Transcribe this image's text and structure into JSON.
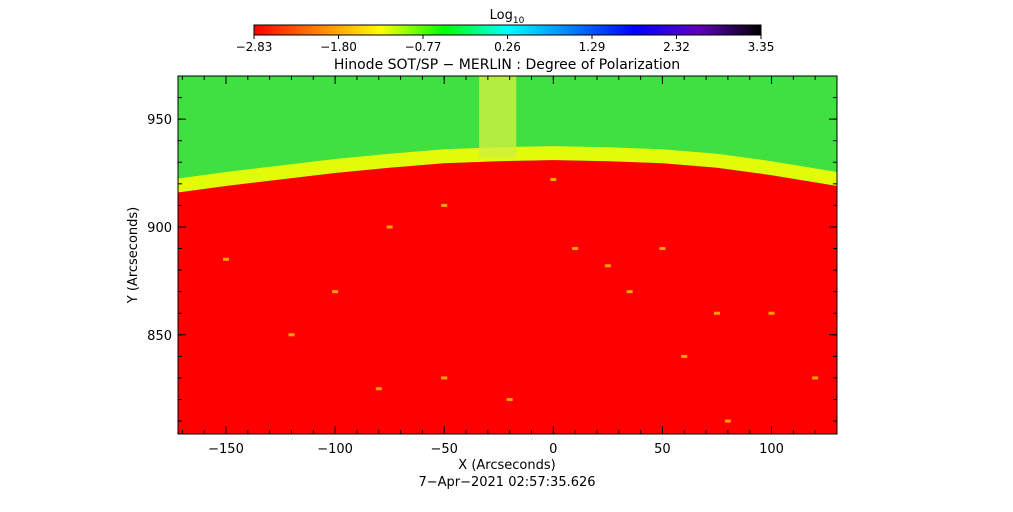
{
  "chart_data": {
    "type": "heatmap",
    "title": "Hinode SOT/SP − MERLIN : Degree of Polarization",
    "xlabel": "X (Arcseconds)",
    "ylabel": "Y (Arcseconds)",
    "timestamp": "7−Apr−2021 02:57:35.626",
    "xlim": [
      -172,
      130
    ],
    "ylim": [
      804,
      970
    ],
    "x_ticks": [
      -150,
      -100,
      -50,
      0,
      50,
      100
    ],
    "x_tick_labels": [
      "−150",
      "−100",
      "−50",
      "0",
      "50",
      "100"
    ],
    "y_ticks": [
      850,
      900,
      950
    ],
    "y_tick_labels": [
      "850",
      "900",
      "950"
    ],
    "colorbar": {
      "label": "Log",
      "label_subscript": "10",
      "range": [
        -2.83,
        3.35
      ],
      "ticks": [
        -2.83,
        -1.8,
        -0.77,
        0.26,
        1.29,
        2.32,
        3.35
      ],
      "tick_labels": [
        "−2.83",
        "−1.80",
        "−0.77",
        "0.26",
        "1.29",
        "2.32",
        "3.35"
      ],
      "colormap": [
        "#ff0000",
        "#ff8000",
        "#ffff00",
        "#00ff00",
        "#00ffff",
        "#0080ff",
        "#0000ff",
        "#6000c0",
        "#000000"
      ]
    },
    "colors": {
      "disk": "#ff0000",
      "limb_band": "#ffff00",
      "above_limb_low": "#c8f000",
      "above_limb_high": "#40e040",
      "column_feature": "#d0f040",
      "plage_spots": "#ffa000"
    },
    "limb_curve": {
      "x": [
        -172,
        -150,
        -125,
        -100,
        -75,
        -50,
        -25,
        0,
        25,
        50,
        75,
        100,
        130
      ],
      "y": [
        916,
        919,
        922,
        925,
        927.5,
        929.5,
        930.5,
        931,
        930.5,
        929.5,
        927.5,
        924,
        919
      ]
    },
    "column_feature": {
      "x_range": [
        -34,
        -17
      ],
      "y_range": [
        932,
        970
      ]
    },
    "plage_spots": {
      "x": [
        -150,
        -100,
        -75,
        -50,
        0,
        10,
        25,
        50,
        75,
        100,
        120,
        -120,
        -50,
        35,
        60,
        -80,
        80,
        -20
      ],
      "y": [
        885,
        870,
        900,
        910,
        922,
        890,
        882,
        890,
        860,
        860,
        830,
        850,
        830,
        870,
        840,
        825,
        810,
        820
      ]
    }
  }
}
